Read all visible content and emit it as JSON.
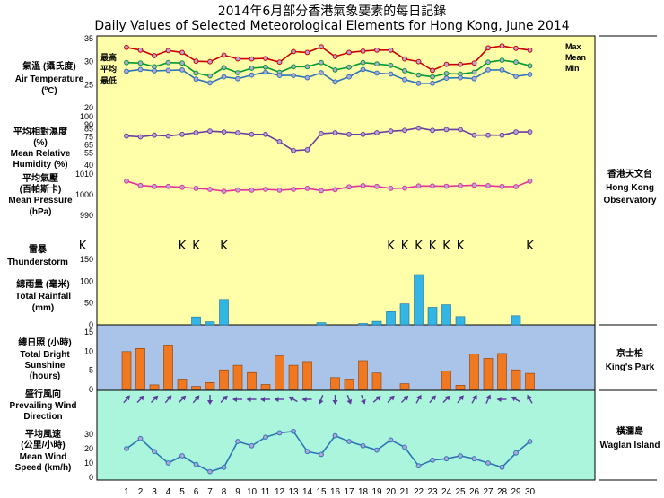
{
  "title_zh": "2014年6月部分香港氣象要素的每日記錄",
  "title_en": "Daily Values of Selected Meteorological Elements for Hong Kong, June 2014",
  "days": [
    1,
    2,
    3,
    4,
    5,
    6,
    7,
    8,
    9,
    10,
    11,
    12,
    13,
    14,
    15,
    16,
    17,
    18,
    19,
    20,
    21,
    22,
    23,
    24,
    25,
    26,
    27,
    28,
    29,
    30
  ],
  "colors": {
    "max": "#cc0000",
    "mean": "#009933",
    "min": "#2e75b6",
    "humidity": "#6a3d9a",
    "pressure": "#e0339a",
    "rain_bar": "#33b5e5",
    "sun_bar": "#f07820",
    "wind_dir": "#5b3a9c",
    "wind_speed": "#2e75b6",
    "bg_hko": "#ffffaa",
    "bg_kp": "#a9c4e8",
    "bg_wgl": "#aaf5dc"
  },
  "panels": {
    "temperature": {
      "label_zh": "氣溫 (攝氏度)",
      "label_en": "Air Temperature",
      "unit": "(ºC)",
      "legend_max_zh": "最高",
      "legend_mean_zh": "平均",
      "legend_min_zh": "最低",
      "legend_max": "Max",
      "legend_mean": "Mean",
      "legend_min": "Min"
    },
    "humidity": {
      "label_zh1": "平均相對濕度",
      "label_zh2": "(%)",
      "label_en1": "Mean Relative",
      "label_en2": "Humidity (%)"
    },
    "pressure": {
      "label_zh1": "平均氣壓",
      "label_zh2": "(百帕斯卡)",
      "label_en1": "Mean Pressure",
      "label_en2": "(hPa)"
    },
    "thunder": {
      "label_zh": "雷暴",
      "label_en": "Thunderstorm",
      "symbol": "K"
    },
    "rainfall": {
      "label_zh": "總雨量 (毫米)",
      "label_en1": "Total Rainfall",
      "label_en2": "(mm)"
    },
    "sunshine": {
      "label_zh": "總日照 (小時)",
      "label_en1": "Total Bright",
      "label_en2": "Sunshine",
      "label_en3": "(hours)"
    },
    "wind_dir": {
      "label_zh": "盛行風向",
      "label_en1": "Prevailing Wind",
      "label_en2": "Direction"
    },
    "wind_speed": {
      "label_zh1": "平均風速",
      "label_zh2": "(公里/小時)",
      "label_en1": "Mean Wind",
      "label_en2": "Speed (km/h)"
    }
  },
  "stations": {
    "hko": {
      "zh": "香港天文台",
      "en1": "Hong Kong",
      "en2": "Observatory"
    },
    "kp": {
      "zh": "京士柏",
      "en": "King's Park"
    },
    "wgl": {
      "zh": "橫瀾島",
      "en": "Waglan Island"
    }
  },
  "chart_data": [
    {
      "type": "line",
      "name": "temperature",
      "ylim": [
        20,
        35
      ],
      "yticks": [
        20,
        25,
        30,
        35
      ],
      "series": [
        {
          "name": "Max",
          "values": [
            33.1,
            32.5,
            31.3,
            32.4,
            32.0,
            30.1,
            30.0,
            31.4,
            30.6,
            30.6,
            30.7,
            29.9,
            32.2,
            32.0,
            33.2,
            31.1,
            32.0,
            32.3,
            32.5,
            32.5,
            30.6,
            30.0,
            28.1,
            29.4,
            29.4,
            29.7,
            33.0,
            33.4,
            32.9,
            32.5
          ]
        },
        {
          "name": "Mean",
          "values": [
            29.8,
            29.7,
            28.9,
            29.8,
            29.7,
            27.5,
            26.9,
            28.7,
            27.6,
            28.6,
            28.8,
            27.7,
            28.9,
            28.9,
            29.8,
            28.2,
            28.8,
            29.8,
            29.5,
            29.2,
            28.0,
            27.1,
            26.7,
            27.4,
            27.3,
            27.7,
            29.9,
            30.3,
            29.9,
            29.1
          ]
        },
        {
          "name": "Min",
          "values": [
            27.9,
            28.3,
            28.0,
            28.1,
            28.2,
            26.2,
            25.4,
            26.7,
            26.3,
            27.1,
            27.7,
            27.0,
            27.0,
            26.5,
            27.6,
            25.6,
            26.7,
            28.3,
            27.5,
            27.3,
            26.1,
            25.3,
            25.3,
            26.4,
            26.5,
            26.3,
            28.2,
            28.2,
            26.8,
            27.2
          ]
        }
      ]
    },
    {
      "type": "line",
      "name": "mean_relative_humidity",
      "ylim": [
        40,
        100
      ],
      "yticks": [
        40,
        55,
        65,
        75,
        85,
        90,
        100
      ],
      "values": [
        76,
        75,
        77,
        76,
        78,
        80,
        82,
        81,
        80,
        78,
        78,
        69,
        58,
        59,
        79,
        80,
        78,
        78,
        80,
        82,
        83,
        86,
        83,
        84,
        84,
        77,
        77,
        77,
        81,
        81
      ]
    },
    {
      "type": "line",
      "name": "mean_pressure",
      "ylim": [
        990,
        1010
      ],
      "yticks": [
        990,
        1000,
        1010
      ],
      "values": [
        1006.6,
        1004.5,
        1004.0,
        1004.0,
        1003.6,
        1003.1,
        1002.6,
        1001.7,
        1002.3,
        1002.2,
        1002.6,
        1002.2,
        1002.6,
        1003.1,
        1002.0,
        1002.5,
        1003.8,
        1004.4,
        1004.0,
        1003.1,
        1003.2,
        1004.2,
        1004.2,
        1004.1,
        1004.4,
        1004.6,
        1004.4,
        1004.0,
        1003.9,
        1006.6
      ]
    },
    {
      "type": "scatter",
      "name": "thunderstorm_days",
      "days": [
        5,
        6,
        8,
        20,
        21,
        22,
        23,
        24,
        25,
        30
      ]
    },
    {
      "type": "bar",
      "name": "total_rainfall",
      "ylim": [
        0,
        150
      ],
      "yticks": [
        0,
        50,
        100,
        150
      ],
      "values": [
        0,
        0,
        0,
        0,
        0,
        18,
        7,
        58,
        0,
        0,
        0,
        0,
        0,
        0,
        5,
        0,
        0,
        3,
        8,
        30,
        48,
        115,
        40,
        46,
        19,
        0,
        0,
        0,
        21,
        0
      ]
    },
    {
      "type": "bar",
      "name": "total_bright_sunshine",
      "ylim": [
        0,
        15
      ],
      "yticks": [
        0,
        5,
        10,
        15
      ],
      "values": [
        9.9,
        10.7,
        1.2,
        11.4,
        2.7,
        0.8,
        1.8,
        5.1,
        6.3,
        4.4,
        1.3,
        8.8,
        6.3,
        7.3,
        0,
        3.1,
        2.7,
        7.5,
        4.3,
        0,
        1.5,
        0,
        0,
        4.8,
        1.1,
        9.3,
        8.1,
        9.4,
        5.1,
        4.2
      ]
    },
    {
      "type": "scatter",
      "name": "prevailing_wind_direction",
      "unit": "arrow bearing (deg, 0=up)",
      "values": [
        40,
        45,
        45,
        40,
        45,
        40,
        180,
        45,
        270,
        270,
        270,
        270,
        300,
        270,
        200,
        180,
        160,
        160,
        50,
        45,
        45,
        30,
        40,
        45,
        40,
        30,
        25,
        270,
        300,
        330
      ]
    },
    {
      "type": "line",
      "name": "mean_wind_speed",
      "ylim": [
        0,
        40
      ],
      "yticks": [
        0,
        10,
        20,
        30
      ],
      "values": [
        20,
        27,
        18,
        10,
        15,
        9,
        4,
        7,
        25,
        22,
        28,
        31,
        32,
        18,
        16,
        29,
        25,
        22,
        19,
        26,
        21,
        8,
        12,
        13,
        15,
        13,
        10,
        7,
        17,
        25
      ]
    }
  ]
}
